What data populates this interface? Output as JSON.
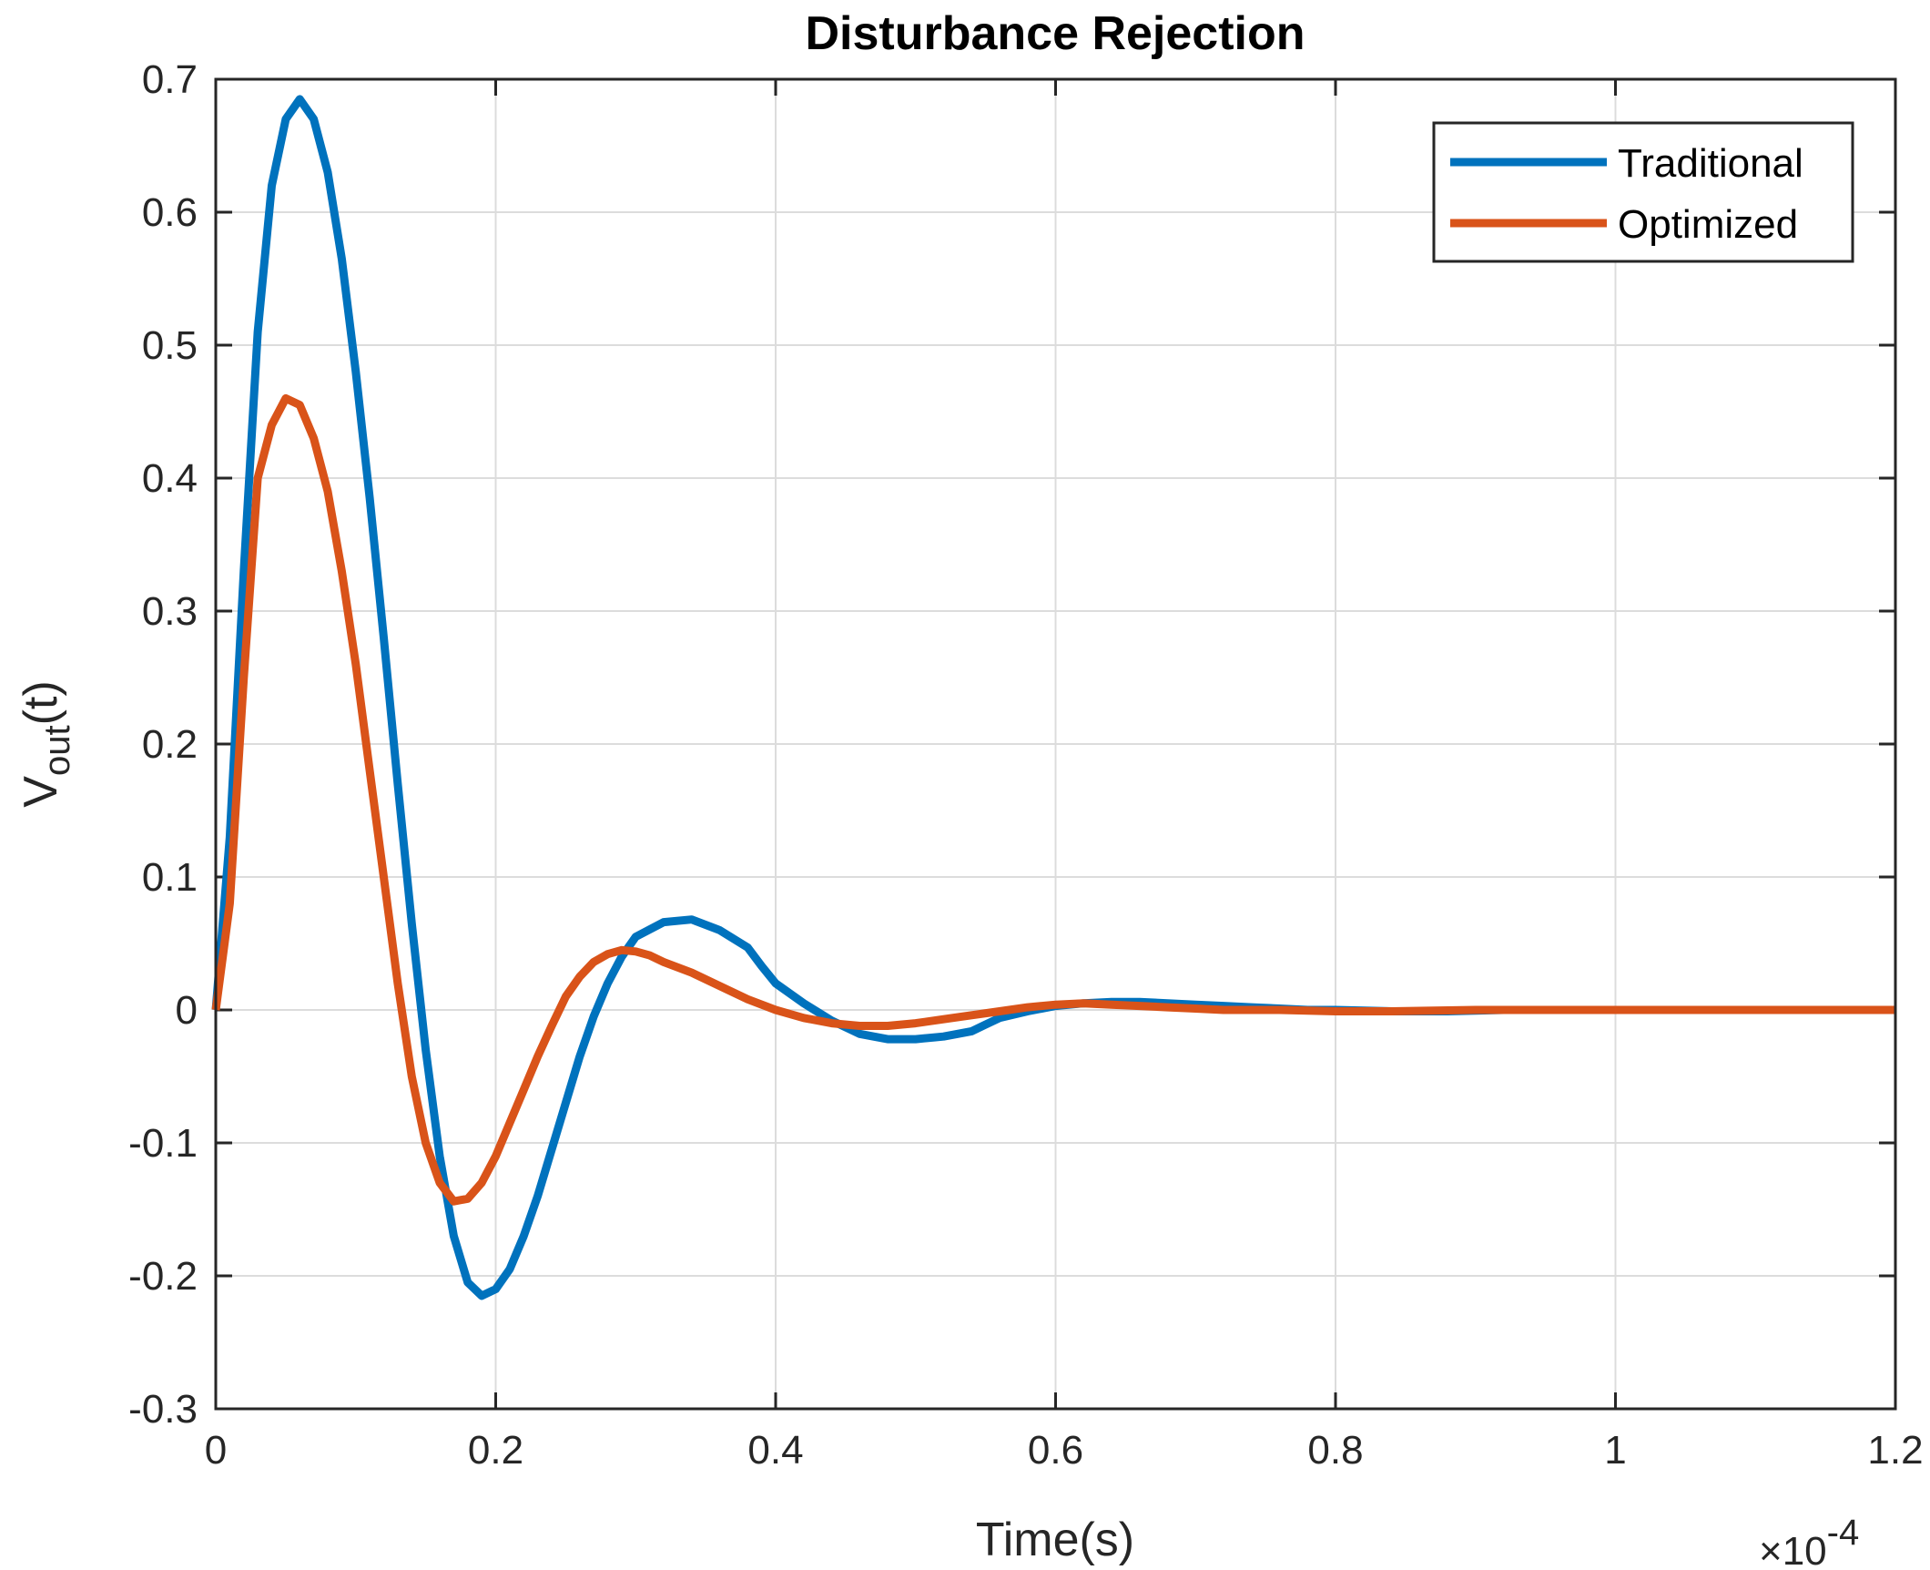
{
  "chart_data": {
    "type": "line",
    "title": "Disturbance Rejection",
    "xlabel": "Time(s)",
    "ylabel": {
      "main": "V",
      "sub": "out",
      "suffix": "(t)"
    },
    "x_exponent": {
      "prefix": "×10",
      "power": "-4"
    },
    "xlim": [
      0,
      1.2
    ],
    "ylim": [
      -0.3,
      0.7
    ],
    "grid": true,
    "legend_position": "top-right",
    "x_ticks": [
      0,
      0.2,
      0.4,
      0.6,
      0.8,
      1,
      1.2
    ],
    "x_tick_labels": [
      "0",
      "0.2",
      "0.4",
      "0.6",
      "0.8",
      "1",
      "1.2"
    ],
    "y_ticks": [
      -0.3,
      -0.2,
      -0.1,
      0,
      0.1,
      0.2,
      0.3,
      0.4,
      0.5,
      0.6,
      0.7
    ],
    "y_tick_labels": [
      "-0.3",
      "-0.2",
      "-0.1",
      "0",
      "0.1",
      "0.2",
      "0.3",
      "0.4",
      "0.5",
      "0.6",
      "0.7"
    ],
    "series": [
      {
        "name": "Traditional",
        "color": "#0072BD",
        "x": [
          0,
          0.01,
          0.02,
          0.03,
          0.04,
          0.05,
          0.06,
          0.07,
          0.08,
          0.09,
          0.1,
          0.11,
          0.12,
          0.13,
          0.14,
          0.15,
          0.16,
          0.17,
          0.18,
          0.19,
          0.2,
          0.21,
          0.22,
          0.23,
          0.24,
          0.25,
          0.26,
          0.27,
          0.28,
          0.29,
          0.3,
          0.32,
          0.34,
          0.36,
          0.38,
          0.39,
          0.4,
          0.42,
          0.44,
          0.46,
          0.48,
          0.5,
          0.52,
          0.54,
          0.55,
          0.56,
          0.58,
          0.6,
          0.62,
          0.64,
          0.66,
          0.68,
          0.7,
          0.72,
          0.74,
          0.76,
          0.78,
          0.8,
          0.84,
          0.88,
          0.92,
          0.96,
          1.0,
          1.05,
          1.1,
          1.15,
          1.2
        ],
        "values": [
          0,
          0.13,
          0.33,
          0.51,
          0.62,
          0.67,
          0.685,
          0.67,
          0.63,
          0.565,
          0.48,
          0.385,
          0.28,
          0.17,
          0.065,
          -0.03,
          -0.11,
          -0.17,
          -0.205,
          -0.215,
          -0.21,
          -0.195,
          -0.17,
          -0.14,
          -0.105,
          -0.07,
          -0.035,
          -0.005,
          0.02,
          0.04,
          0.055,
          0.066,
          0.068,
          0.06,
          0.047,
          0.033,
          0.02,
          0.005,
          -0.008,
          -0.018,
          -0.022,
          -0.022,
          -0.02,
          -0.016,
          -0.011,
          -0.006,
          -0.001,
          0.003,
          0.005,
          0.006,
          0.006,
          0.005,
          0.004,
          0.003,
          0.002,
          0.001,
          0.0,
          0.0,
          -0.001,
          -0.001,
          0.0,
          0.0,
          0.0,
          0.0,
          0.0,
          0.0,
          0.0
        ]
      },
      {
        "name": "Optimized",
        "color": "#D95319",
        "x": [
          0,
          0.01,
          0.02,
          0.03,
          0.04,
          0.05,
          0.06,
          0.07,
          0.08,
          0.09,
          0.1,
          0.11,
          0.12,
          0.13,
          0.14,
          0.15,
          0.16,
          0.17,
          0.18,
          0.19,
          0.2,
          0.21,
          0.22,
          0.23,
          0.24,
          0.25,
          0.26,
          0.27,
          0.28,
          0.29,
          0.3,
          0.31,
          0.32,
          0.34,
          0.36,
          0.38,
          0.4,
          0.42,
          0.44,
          0.46,
          0.48,
          0.5,
          0.52,
          0.54,
          0.56,
          0.58,
          0.6,
          0.62,
          0.64,
          0.66,
          0.68,
          0.7,
          0.72,
          0.76,
          0.8,
          0.84,
          0.9,
          1.0,
          1.1,
          1.2
        ],
        "values": [
          0,
          0.08,
          0.25,
          0.4,
          0.44,
          0.46,
          0.455,
          0.43,
          0.39,
          0.33,
          0.26,
          0.18,
          0.1,
          0.02,
          -0.05,
          -0.1,
          -0.13,
          -0.144,
          -0.142,
          -0.13,
          -0.11,
          -0.085,
          -0.06,
          -0.035,
          -0.012,
          0.01,
          0.025,
          0.036,
          0.042,
          0.045,
          0.044,
          0.041,
          0.036,
          0.028,
          0.018,
          0.008,
          0.0,
          -0.006,
          -0.01,
          -0.012,
          -0.012,
          -0.01,
          -0.007,
          -0.004,
          -0.001,
          0.002,
          0.004,
          0.005,
          0.004,
          0.003,
          0.002,
          0.001,
          0.0,
          0.0,
          -0.001,
          -0.001,
          0.0,
          0.0,
          0.0,
          0.0
        ]
      }
    ]
  }
}
